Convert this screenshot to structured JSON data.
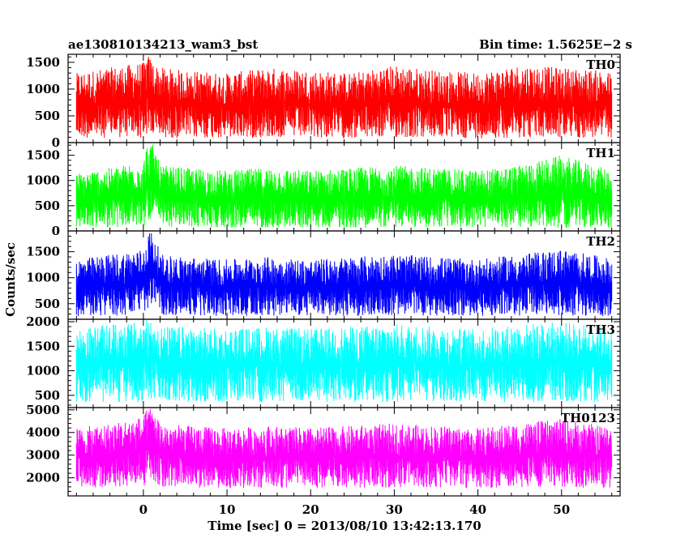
{
  "chart_data": {
    "type": "line",
    "title": "ae130810134213_wam3_bst",
    "subtitle": "Bin time: 1.5625E−2 s",
    "xlabel": "Time [sec] 0 = 2013/08/10 13:42:13.170",
    "ylabel": "Counts/sec",
    "xlim": [
      -9,
      57
    ],
    "x_ticks": [
      0,
      10,
      20,
      30,
      40,
      50
    ],
    "data_x_range": [
      -8,
      56
    ],
    "panels": [
      {
        "name": "TH0",
        "color": "#ff0000",
        "ylim": [
          0,
          1650
        ],
        "y_ticks": [
          0,
          500,
          1000,
          1500
        ],
        "typical_range": [
          80,
          1350
        ],
        "series": [
          {
            "x": [
              -8,
              -4,
              0,
              0.5,
              1,
              1.5,
              2,
              5,
              10,
              15,
              20,
              25,
              30,
              35,
              40,
              45,
              50,
              55,
              56
            ],
            "low": [
              80,
              90,
              85,
              130,
              110,
              95,
              90,
              85,
              80,
              90,
              85,
              80,
              90,
              85,
              80,
              90,
              85,
              80,
              85
            ],
            "high": [
              1300,
              1400,
              1500,
              1650,
              1550,
              1450,
              1400,
              1350,
              1300,
              1400,
              1350,
              1300,
              1450,
              1350,
              1300,
              1450,
              1400,
              1350,
              1300
            ]
          }
        ]
      },
      {
        "name": "TH1",
        "color": "#00ff00",
        "ylim": [
          0,
          1750
        ],
        "y_ticks": [
          0,
          500,
          1000,
          1500
        ],
        "typical_range": [
          60,
          1250
        ],
        "series": [
          {
            "x": [
              -8,
              -4,
              0,
              0.5,
              1,
              1.5,
              2,
              5,
              10,
              15,
              20,
              25,
              30,
              35,
              40,
              45,
              50,
              55,
              56
            ],
            "low": [
              60,
              70,
              80,
              200,
              250,
              150,
              80,
              70,
              60,
              70,
              65,
              60,
              70,
              65,
              60,
              70,
              65,
              60,
              65
            ],
            "high": [
              1150,
              1250,
              1400,
              1750,
              1750,
              1600,
              1300,
              1250,
              1200,
              1250,
              1200,
              1250,
              1300,
              1250,
              1200,
              1300,
              1500,
              1250,
              1200
            ]
          }
        ]
      },
      {
        "name": "TH2",
        "color": "#0000ff",
        "ylim": [
          200,
          1900
        ],
        "y_ticks": [
          500,
          1000,
          1500
        ],
        "typical_range": [
          260,
          1400
        ],
        "series": [
          {
            "x": [
              -8,
              -4,
              0,
              0.5,
              1,
              1.5,
              2,
              5,
              10,
              15,
              20,
              25,
              30,
              35,
              40,
              45,
              50,
              55,
              56
            ],
            "low": [
              250,
              260,
              270,
              400,
              450,
              350,
              280,
              270,
              260,
              270,
              265,
              260,
              270,
              265,
              260,
              270,
              265,
              260,
              265
            ],
            "high": [
              1350,
              1450,
              1550,
              1900,
              1900,
              1750,
              1450,
              1400,
              1350,
              1400,
              1350,
              1400,
              1450,
              1400,
              1350,
              1450,
              1550,
              1400,
              1350
            ]
          }
        ]
      },
      {
        "name": "TH3",
        "color": "#00ffff",
        "ylim": [
          250,
          2050
        ],
        "y_ticks": [
          500,
          1000,
          1500,
          2000
        ],
        "typical_range": [
          350,
          1850
        ],
        "series": [
          {
            "x": [
              -8,
              -4,
              0,
              0.5,
              1,
              1.5,
              2,
              5,
              10,
              15,
              20,
              25,
              30,
              35,
              40,
              45,
              50,
              55,
              56
            ],
            "low": [
              350,
              360,
              350,
              380,
              400,
              370,
              360,
              350,
              360,
              350,
              360,
              350,
              360,
              350,
              360,
              350,
              360,
              350,
              355
            ],
            "high": [
              1850,
              1950,
              2000,
              2050,
              2050,
              2000,
              1900,
              1900,
              1850,
              1900,
              1850,
              1900,
              1950,
              1900,
              1850,
              1950,
              2000,
              1900,
              1850
            ]
          }
        ]
      },
      {
        "name": "TH0123",
        "color": "#ff00ff",
        "ylim": [
          1200,
          5100
        ],
        "y_ticks": [
          2000,
          3000,
          4000,
          5000
        ],
        "typical_range": [
          1550,
          4300
        ],
        "series": [
          {
            "x": [
              -8,
              -4,
              0,
              0.5,
              1,
              1.5,
              2,
              5,
              10,
              15,
              20,
              25,
              30,
              35,
              40,
              45,
              50,
              55,
              56
            ],
            "low": [
              1550,
              1560,
              1600,
              1900,
              2000,
              1800,
              1600,
              1560,
              1550,
              1560,
              1550,
              1560,
              1570,
              1560,
              1550,
              1560,
              1570,
              1550,
              1560
            ],
            "high": [
              4200,
              4400,
              4700,
              5100,
              5100,
              4900,
              4400,
              4300,
              4200,
              4300,
              4200,
              4300,
              4400,
              4300,
              4200,
              4400,
              4600,
              4300,
              4200
            ]
          }
        ]
      }
    ]
  }
}
